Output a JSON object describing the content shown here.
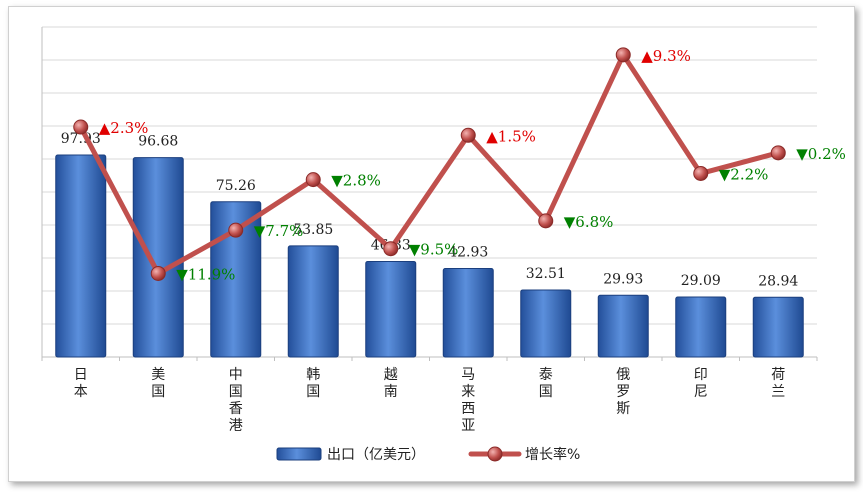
{
  "chart_data": {
    "type": "bar",
    "categories": [
      "日本",
      "美国",
      "中国香港",
      "韩国",
      "越南",
      "马来西亚",
      "泰国",
      "俄罗斯",
      "印尼",
      "荷兰"
    ],
    "series": [
      {
        "name": "出口（亿美元）",
        "type": "bar",
        "values": [
          97.93,
          96.68,
          75.26,
          53.85,
          46.33,
          42.93,
          32.51,
          29.93,
          29.09,
          28.94
        ],
        "labels": [
          "97.93",
          "96.68",
          "75.26",
          "53.85",
          "46.33",
          "42.93",
          "32.51",
          "29.93",
          "29.09",
          "28.94"
        ],
        "color": "#3a6fc4"
      },
      {
        "name": "增长率%",
        "type": "line",
        "values": [
          2.3,
          -11.9,
          -7.7,
          -2.8,
          -9.5,
          1.5,
          -6.8,
          9.3,
          -2.2,
          -0.2
        ],
        "labels": [
          "▲2.3%",
          "▼11.9%",
          "▼7.7%",
          "▼2.8%",
          "▼9.5%",
          "▲1.5%",
          "▼6.8%",
          "▲9.3%",
          "▼2.2%",
          "▼0.2%"
        ],
        "color": "#c0504d"
      }
    ],
    "bar_axis_range": [
      0,
      160
    ],
    "line_axis_range": [
      -20,
      12
    ],
    "grid": true,
    "legend_position": "bottom",
    "colors": {
      "up": "#e00000",
      "down": "#008000"
    }
  }
}
